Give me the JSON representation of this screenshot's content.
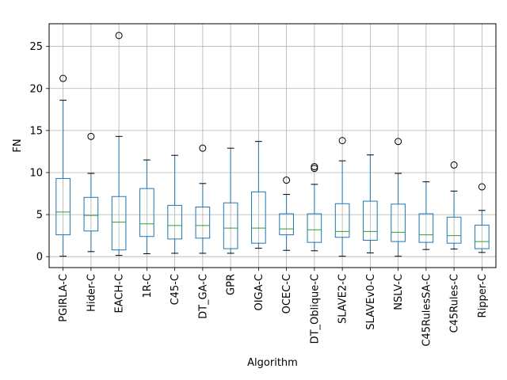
{
  "chart_data": {
    "type": "box",
    "xlabel": "Algorithm",
    "ylabel": "FN",
    "ylim": [
      -1.3,
      27.7
    ],
    "yticks": [
      0,
      5,
      10,
      15,
      20,
      25
    ],
    "grid": true,
    "colors": {
      "box": "#1f77b4",
      "median": "#2ca02c",
      "whisker": "#000000",
      "grid": "#b0b0b0"
    },
    "categories": [
      "PGIRLA-C",
      "Hider-C",
      "EACH-C",
      "1R-C",
      "C45-C",
      "DT_GA-C",
      "GPR",
      "OIGA-C",
      "OCEC-C",
      "DT_Oblique-C",
      "SLAVE2-C",
      "SLAVEv0-C",
      "NSLV-C",
      "C45RulesSA-C",
      "C45Rules-C",
      "Ripper-C"
    ],
    "boxes": [
      {
        "name": "PGIRLA-C",
        "whislo": 0.05,
        "q1": 2.6,
        "med": 5.3,
        "q3": 9.3,
        "whishi": 18.6,
        "fliers": [
          21.2
        ]
      },
      {
        "name": "Hider-C",
        "whislo": 0.6,
        "q1": 3.05,
        "med": 4.9,
        "q3": 7.05,
        "whishi": 9.9,
        "fliers": [
          14.3
        ]
      },
      {
        "name": "EACH-C",
        "whislo": 0.15,
        "q1": 0.8,
        "med": 4.1,
        "q3": 7.15,
        "whishi": 14.3,
        "fliers": [
          26.3
        ]
      },
      {
        "name": "1R-C",
        "whislo": 0.35,
        "q1": 2.4,
        "med": 3.9,
        "q3": 8.1,
        "whishi": 11.5,
        "fliers": []
      },
      {
        "name": "C45-C",
        "whislo": 0.4,
        "q1": 2.1,
        "med": 3.7,
        "q3": 6.1,
        "whishi": 12.05,
        "fliers": []
      },
      {
        "name": "DT_GA-C",
        "whislo": 0.4,
        "q1": 2.2,
        "med": 3.7,
        "q3": 5.9,
        "whishi": 8.7,
        "fliers": [
          12.9
        ]
      },
      {
        "name": "GPR",
        "whislo": 0.4,
        "q1": 0.95,
        "med": 3.4,
        "q3": 6.4,
        "whishi": 12.9,
        "fliers": []
      },
      {
        "name": "OIGA-C",
        "whislo": 1.0,
        "q1": 1.6,
        "med": 3.4,
        "q3": 7.7,
        "whishi": 13.7,
        "fliers": []
      },
      {
        "name": "OCEC-C",
        "whislo": 0.75,
        "q1": 2.6,
        "med": 3.3,
        "q3": 5.1,
        "whishi": 7.4,
        "fliers": [
          9.1
        ]
      },
      {
        "name": "DT_Oblique-C",
        "whislo": 0.7,
        "q1": 1.7,
        "med": 3.2,
        "q3": 5.1,
        "whishi": 8.6,
        "fliers": [
          10.5,
          10.7
        ]
      },
      {
        "name": "SLAVE2-C",
        "whislo": 0.05,
        "q1": 2.3,
        "med": 3.0,
        "q3": 6.3,
        "whishi": 11.4,
        "fliers": [
          13.8
        ]
      },
      {
        "name": "SLAVEv0-C",
        "whislo": 0.45,
        "q1": 1.95,
        "med": 3.0,
        "q3": 6.6,
        "whishi": 12.1,
        "fliers": []
      },
      {
        "name": "NSLV-C",
        "whislo": 0.05,
        "q1": 1.8,
        "med": 2.9,
        "q3": 6.25,
        "whishi": 9.9,
        "fliers": [
          13.7
        ]
      },
      {
        "name": "C45RulesSA-C",
        "whislo": 0.85,
        "q1": 1.7,
        "med": 2.6,
        "q3": 5.1,
        "whishi": 8.9,
        "fliers": []
      },
      {
        "name": "C45Rules-C",
        "whislo": 0.9,
        "q1": 1.6,
        "med": 2.5,
        "q3": 4.7,
        "whishi": 7.8,
        "fliers": [
          10.9
        ]
      },
      {
        "name": "Ripper-C",
        "whislo": 0.5,
        "q1": 0.95,
        "med": 1.8,
        "q3": 3.75,
        "whishi": 5.5,
        "fliers": [
          8.3
        ]
      }
    ]
  }
}
